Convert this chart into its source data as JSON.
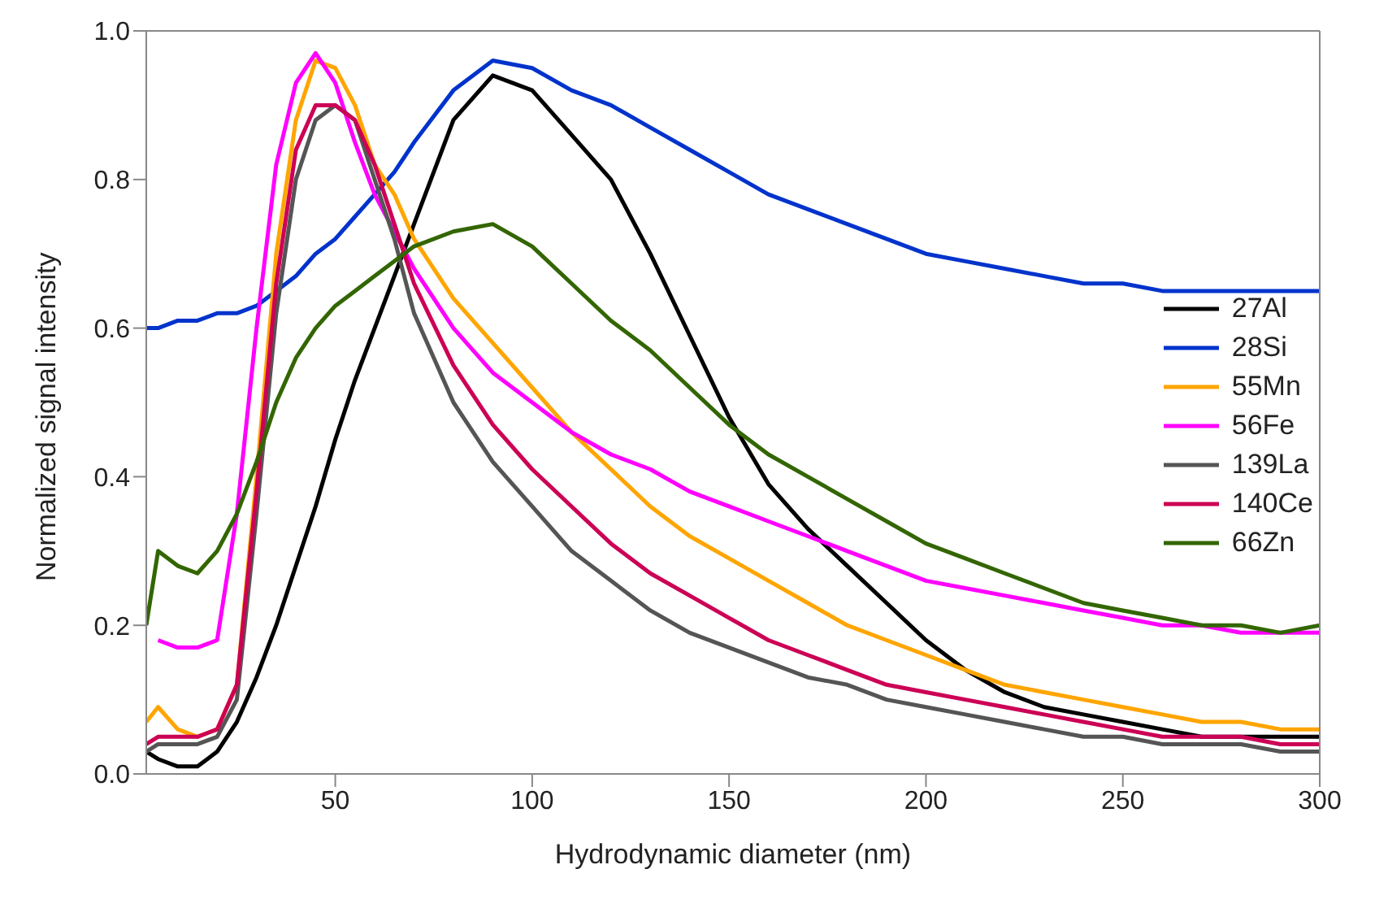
{
  "chart_data": {
    "type": "line",
    "xlabel": "Hydrodynamic diameter (nm)",
    "ylabel": "Normalized signal intensity",
    "x": [
      2,
      5,
      10,
      15,
      20,
      25,
      30,
      35,
      40,
      45,
      50,
      55,
      60,
      65,
      70,
      80,
      90,
      100,
      110,
      120,
      130,
      140,
      150,
      160,
      170,
      180,
      190,
      200,
      210,
      220,
      230,
      240,
      250,
      260,
      270,
      280,
      290,
      300
    ],
    "xlim": [
      2,
      300
    ],
    "xticks": [
      50,
      100,
      150,
      200,
      250,
      300
    ],
    "ylim": [
      0,
      1
    ],
    "yticks": [
      {
        "value": 0,
        "label": "0.0"
      },
      {
        "value": 0.2,
        "label": "0.2"
      },
      {
        "value": 0.4,
        "label": "0.4"
      },
      {
        "value": 0.6,
        "label": "0.6"
      },
      {
        "value": 0.8,
        "label": "0.8"
      },
      {
        "value": 1,
        "label": "1.0"
      }
    ],
    "grid": false,
    "legend": "right",
    "marker": "none",
    "line_style": "solid",
    "series": [
      {
        "name": "27Al",
        "color": "#000000",
        "values": [
          0.03,
          0.02,
          0.01,
          0.01,
          0.03,
          0.07,
          0.13,
          0.2,
          0.28,
          0.36,
          0.45,
          0.53,
          0.6,
          0.67,
          0.74,
          0.88,
          0.94,
          0.92,
          0.86,
          0.8,
          0.7,
          0.59,
          0.48,
          0.39,
          0.33,
          0.28,
          0.23,
          0.18,
          0.14,
          0.11,
          0.09,
          0.08,
          0.07,
          0.06,
          0.05,
          0.05,
          0.05,
          0.05
        ]
      },
      {
        "name": "28Si",
        "color": "#0033cc",
        "values": [
          0.6,
          0.6,
          0.61,
          0.61,
          0.62,
          0.62,
          0.63,
          0.65,
          0.67,
          0.7,
          0.72,
          0.75,
          0.78,
          0.81,
          0.85,
          0.92,
          0.96,
          0.95,
          0.92,
          0.9,
          0.87,
          0.84,
          0.81,
          0.78,
          0.76,
          0.74,
          0.72,
          0.7,
          0.69,
          0.68,
          0.67,
          0.66,
          0.66,
          0.65,
          0.65,
          0.65,
          0.65,
          0.65
        ]
      },
      {
        "name": "55Mn",
        "color": "#ffa500",
        "values": [
          0.07,
          0.09,
          0.06,
          0.05,
          0.06,
          0.12,
          0.4,
          0.7,
          0.88,
          0.96,
          0.95,
          0.9,
          0.82,
          0.78,
          0.72,
          0.64,
          0.58,
          0.52,
          0.46,
          0.41,
          0.36,
          0.32,
          0.29,
          0.26,
          0.23,
          0.2,
          0.18,
          0.16,
          0.14,
          0.12,
          0.11,
          0.1,
          0.09,
          0.08,
          0.07,
          0.07,
          0.06,
          0.06
        ]
      },
      {
        "name": "56Fe",
        "color": "#ff00ff",
        "values": [
          null,
          0.18,
          0.17,
          0.17,
          0.18,
          0.35,
          0.6,
          0.82,
          0.93,
          0.97,
          0.93,
          0.85,
          0.78,
          0.73,
          0.68,
          0.6,
          0.54,
          0.5,
          0.46,
          0.43,
          0.41,
          0.38,
          0.36,
          0.34,
          0.32,
          0.3,
          0.28,
          0.26,
          0.25,
          0.24,
          0.23,
          0.22,
          0.21,
          0.2,
          0.2,
          0.19,
          0.19,
          0.19
        ]
      },
      {
        "name": "139La",
        "color": "#555555",
        "values": [
          0.03,
          0.04,
          0.04,
          0.04,
          0.05,
          0.1,
          0.35,
          0.62,
          0.8,
          0.88,
          0.9,
          0.88,
          0.8,
          0.72,
          0.62,
          0.5,
          0.42,
          0.36,
          0.3,
          0.26,
          0.22,
          0.19,
          0.17,
          0.15,
          0.13,
          0.12,
          0.1,
          0.09,
          0.08,
          0.07,
          0.06,
          0.05,
          0.05,
          0.04,
          0.04,
          0.04,
          0.03,
          0.03
        ]
      },
      {
        "name": "140Ce",
        "color": "#cc0055",
        "values": [
          0.04,
          0.05,
          0.05,
          0.05,
          0.06,
          0.12,
          0.38,
          0.66,
          0.84,
          0.9,
          0.9,
          0.88,
          0.82,
          0.74,
          0.66,
          0.55,
          0.47,
          0.41,
          0.36,
          0.31,
          0.27,
          0.24,
          0.21,
          0.18,
          0.16,
          0.14,
          0.12,
          0.11,
          0.1,
          0.09,
          0.08,
          0.07,
          0.06,
          0.05,
          0.05,
          0.05,
          0.04,
          0.04
        ]
      },
      {
        "name": "66Zn",
        "color": "#336600",
        "values": [
          0.2,
          0.3,
          0.28,
          0.27,
          0.3,
          0.35,
          0.42,
          0.5,
          0.56,
          0.6,
          0.63,
          0.65,
          0.67,
          0.69,
          0.71,
          0.73,
          0.74,
          0.71,
          0.66,
          0.61,
          0.57,
          0.52,
          0.47,
          0.43,
          0.4,
          0.37,
          0.34,
          0.31,
          0.29,
          0.27,
          0.25,
          0.23,
          0.22,
          0.21,
          0.2,
          0.2,
          0.19,
          0.2
        ]
      }
    ]
  }
}
